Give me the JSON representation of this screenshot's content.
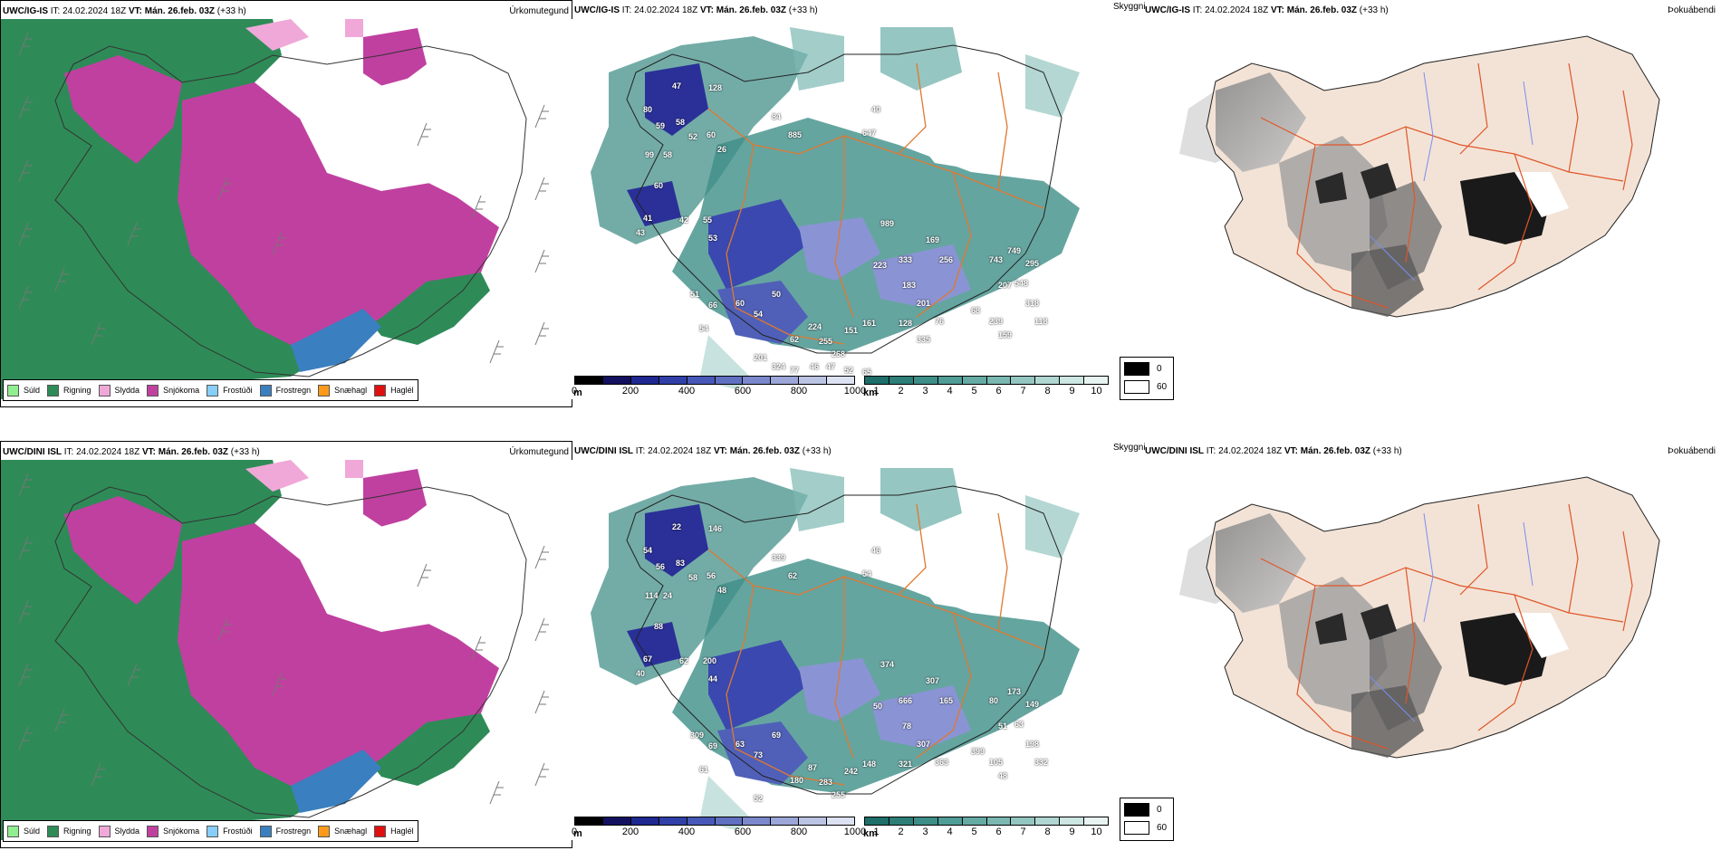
{
  "rows": [
    {
      "model": "UWC/IG-IS",
      "it_label": "IT:",
      "it_value": "24.02.2024 18Z",
      "vt_label": "VT:",
      "vt_value": "Mán. 26.feb. 03Z",
      "lead": "(+33 h)",
      "panel1_title": "Úrkomutegund",
      "panel2_title": "Skyggni",
      "panel3_title": "Þokuábendi",
      "cloud_labels": [
        "47",
        "128",
        "80",
        "59",
        "58",
        "52",
        "60",
        "99",
        "58",
        "26",
        "60",
        "41",
        "42",
        "55",
        "53",
        "43",
        "885",
        "647",
        "40",
        "84",
        "989",
        "169",
        "333",
        "256",
        "223",
        "183",
        "743",
        "749",
        "295",
        "548",
        "207",
        "318",
        "118",
        "51",
        "66",
        "54",
        "60",
        "54",
        "50",
        "224",
        "62",
        "255",
        "268",
        "151",
        "161",
        "128",
        "201",
        "76",
        "68",
        "239",
        "159",
        "201",
        "324",
        "77",
        "46",
        "47",
        "52",
        "65",
        "335"
      ]
    },
    {
      "model": "UWC/DINI ISL",
      "it_label": "IT:",
      "it_value": "24.02.2024 18Z",
      "vt_label": "VT:",
      "vt_value": "Mán. 26.feb. 03Z",
      "lead": "(+33 h)",
      "panel1_title": "Úrkomutegund",
      "panel2_title": "Skyggni",
      "panel3_title": "Þokuábendi",
      "cloud_labels": [
        "22",
        "146",
        "54",
        "56",
        "83",
        "58",
        "56",
        "114",
        "24",
        "48",
        "88",
        "67",
        "62",
        "200",
        "44",
        "40",
        "62",
        "54",
        "46",
        "339",
        "374",
        "307",
        "666",
        "165",
        "50",
        "78",
        "80",
        "173",
        "149",
        "63",
        "51",
        "198",
        "332",
        "309",
        "69",
        "61",
        "63",
        "73",
        "69",
        "87",
        "180",
        "283",
        "255",
        "242",
        "148",
        "321",
        "307",
        "363",
        "399",
        "105",
        "48",
        "52"
      ]
    }
  ],
  "precip_legend": [
    {
      "label": "Súld",
      "color": "#90ee90"
    },
    {
      "label": "Rigning",
      "color": "#2e8b57"
    },
    {
      "label": "Slydda",
      "color": "#f0a8d8"
    },
    {
      "label": "Snjókoma",
      "color": "#c040a0"
    },
    {
      "label": "Frostúði",
      "color": "#87cefa"
    },
    {
      "label": "Frostregn",
      "color": "#3a7fc0"
    },
    {
      "label": "Snæhagl",
      "color": "#ff9a1a"
    },
    {
      "label": "Haglél",
      "color": "#e01010"
    }
  ],
  "cloudbase_colorbar": {
    "unit": "m",
    "ticks": [
      "0",
      "200",
      "400",
      "600",
      "800",
      "1000"
    ],
    "colors": [
      "#000000",
      "#141060",
      "#1e2890",
      "#3040a8",
      "#4858b8",
      "#6070c0",
      "#7c88cc",
      "#9ca6d8",
      "#bcc4e4",
      "#dde2f2"
    ]
  },
  "visibility_colorbar": {
    "unit": "km",
    "ticks": [
      "1",
      "2",
      "3",
      "4",
      "5",
      "6",
      "7",
      "8",
      "9",
      "10"
    ],
    "colors": [
      "#1e6e6a",
      "#2e7e78",
      "#3e8e88",
      "#509c96",
      "#66aaa4",
      "#7cb8b2",
      "#94c6c0",
      "#b0d6d2",
      "#cce6e2",
      "#e8f4f2"
    ]
  },
  "fog_legend": [
    {
      "label": "0",
      "color": "#000000"
    },
    {
      "label": "60",
      "color": "#ffffff"
    }
  ]
}
